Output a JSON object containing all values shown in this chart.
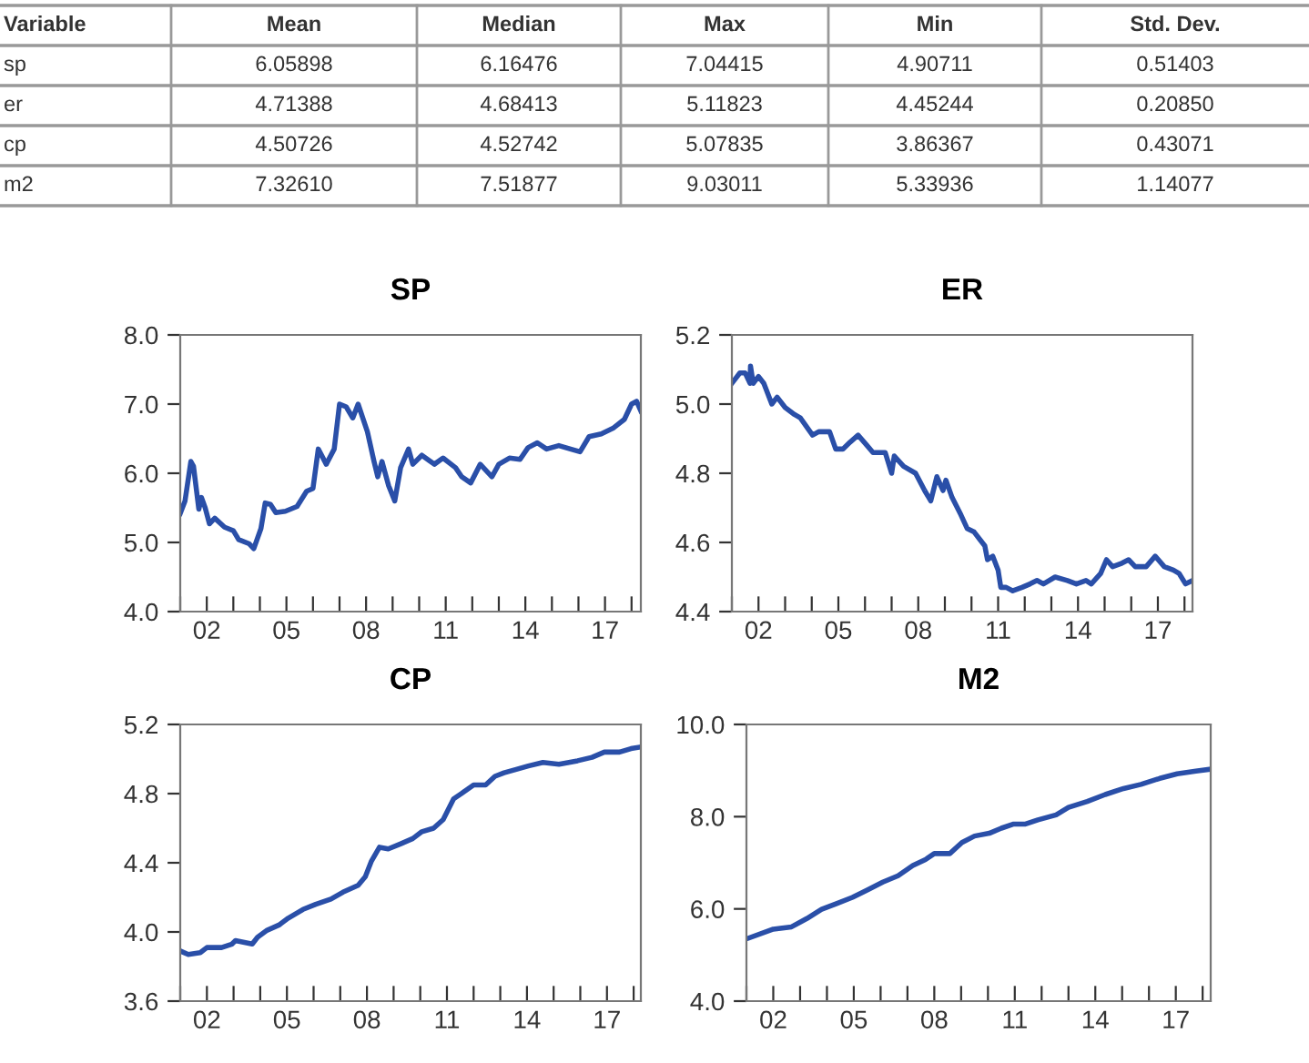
{
  "chart_data": [
    {
      "type": "other",
      "categories": [
        "Variable",
        "Mean",
        "Median",
        "Max",
        "Min",
        "Std. Dev."
      ],
      "annotations": [
        "sp",
        "6.05898",
        "6.16476",
        "7.04415",
        "4.90711",
        "0.51403",
        "er",
        "4.71388",
        "4.68413",
        "5.11823",
        "4.45244",
        "0.20850",
        "cp",
        "4.50726",
        "4.52742",
        "5.07835",
        "3.86367",
        "0.43071",
        "m2",
        "7.32610",
        "7.51877",
        "9.03011",
        "5.33936",
        "1.14077"
      ]
    },
    {
      "type": "line",
      "title": "SP",
      "color": "#2a4fa8",
      "xlim": [
        2001,
        2018.35
      ],
      "ylim": [
        4,
        8
      ],
      "yticks": [
        {
          "value": 4,
          "label": "4.0"
        },
        {
          "value": 5,
          "label": "5.0"
        },
        {
          "value": 6,
          "label": "6.0"
        },
        {
          "value": 7,
          "label": "7.0"
        },
        {
          "value": 8,
          "label": "8.0"
        }
      ],
      "xticks": [
        {
          "value": 2001,
          "label": null
        },
        {
          "value": 2002,
          "label": "02"
        },
        {
          "value": 2003,
          "label": null
        },
        {
          "value": 2004,
          "label": null
        },
        {
          "value": 2005,
          "label": "05"
        },
        {
          "value": 2006,
          "label": null
        },
        {
          "value": 2007,
          "label": null
        },
        {
          "value": 2008,
          "label": "08"
        },
        {
          "value": 2009,
          "label": null
        },
        {
          "value": 2010,
          "label": null
        },
        {
          "value": 2011,
          "label": "11"
        },
        {
          "value": 2012,
          "label": null
        },
        {
          "value": 2013,
          "label": null
        },
        {
          "value": 2014,
          "label": "14"
        },
        {
          "value": 2015,
          "label": null
        },
        {
          "value": 2016,
          "label": null
        },
        {
          "value": 2017,
          "label": "17"
        },
        {
          "value": 2018,
          "label": null
        }
      ],
      "x": [
        2001.0,
        2001.18,
        2001.4,
        2001.5,
        2001.7,
        2001.8,
        2001.94,
        2002.1,
        2002.3,
        2002.67,
        2003.0,
        2003.2,
        2003.6,
        2003.77,
        2004.04,
        2004.2,
        2004.4,
        2004.6,
        2004.96,
        2005.4,
        2005.76,
        2006.0,
        2006.2,
        2006.5,
        2006.8,
        2007.0,
        2007.25,
        2007.5,
        2007.7,
        2008.05,
        2008.3,
        2008.44,
        2008.6,
        2008.85,
        2009.08,
        2009.3,
        2009.6,
        2009.76,
        2010.1,
        2010.57,
        2010.9,
        2011.37,
        2011.6,
        2011.94,
        2012.3,
        2012.74,
        2013.0,
        2013.4,
        2013.8,
        2014.1,
        2014.45,
        2014.8,
        2015.26,
        2015.7,
        2016.06,
        2016.4,
        2016.86,
        2017.3,
        2017.73,
        2018.0,
        2018.19,
        2018.35
      ],
      "values": [
        5.42,
        5.6,
        6.17,
        6.1,
        5.48,
        5.65,
        5.5,
        5.27,
        5.35,
        5.22,
        5.17,
        5.04,
        4.98,
        4.91,
        5.2,
        5.57,
        5.55,
        5.43,
        5.45,
        5.52,
        5.74,
        5.78,
        6.35,
        6.13,
        6.35,
        7.0,
        6.96,
        6.8,
        7.0,
        6.6,
        6.17,
        5.95,
        6.17,
        5.82,
        5.6,
        6.08,
        6.35,
        6.13,
        6.26,
        6.13,
        6.22,
        6.08,
        5.95,
        5.86,
        6.13,
        5.95,
        6.13,
        6.22,
        6.2,
        6.37,
        6.44,
        6.35,
        6.4,
        6.35,
        6.31,
        6.53,
        6.57,
        6.65,
        6.78,
        7.0,
        7.04,
        6.9
      ]
    },
    {
      "type": "line",
      "title": "ER",
      "color": "#2a4fa8",
      "xlim": [
        2001,
        2018.3
      ],
      "ylim": [
        4.4,
        5.2
      ],
      "yticks": [
        {
          "value": 4.4,
          "label": "4.4"
        },
        {
          "value": 4.6,
          "label": "4.6"
        },
        {
          "value": 4.8,
          "label": "4.8"
        },
        {
          "value": 5.0,
          "label": "5.0"
        },
        {
          "value": 5.2,
          "label": "5.2"
        }
      ],
      "xticks": [
        {
          "value": 2001,
          "label": null
        },
        {
          "value": 2002,
          "label": "02"
        },
        {
          "value": 2003,
          "label": null
        },
        {
          "value": 2004,
          "label": null
        },
        {
          "value": 2005,
          "label": "05"
        },
        {
          "value": 2006,
          "label": null
        },
        {
          "value": 2007,
          "label": null
        },
        {
          "value": 2008,
          "label": "08"
        },
        {
          "value": 2009,
          "label": null
        },
        {
          "value": 2010,
          "label": null
        },
        {
          "value": 2011,
          "label": "11"
        },
        {
          "value": 2012,
          "label": null
        },
        {
          "value": 2013,
          "label": null
        },
        {
          "value": 2014,
          "label": "14"
        },
        {
          "value": 2015,
          "label": null
        },
        {
          "value": 2016,
          "label": null
        },
        {
          "value": 2017,
          "label": "17"
        },
        {
          "value": 2018,
          "label": null
        }
      ],
      "x": [
        2001.0,
        2001.3,
        2001.5,
        2001.68,
        2001.7,
        2001.8,
        2002.0,
        2002.2,
        2002.5,
        2002.7,
        2003.0,
        2003.35,
        2003.57,
        2004.03,
        2004.26,
        2004.67,
        2004.9,
        2005.17,
        2005.44,
        2005.74,
        2006.08,
        2006.3,
        2006.76,
        2007.0,
        2007.1,
        2007.45,
        2007.9,
        2008.24,
        2008.47,
        2008.7,
        2008.93,
        2009.04,
        2009.27,
        2009.6,
        2009.84,
        2010.1,
        2010.3,
        2010.5,
        2010.6,
        2010.8,
        2011.0,
        2011.1,
        2011.3,
        2011.55,
        2011.9,
        2012.2,
        2012.46,
        2012.7,
        2013.14,
        2013.6,
        2013.94,
        2014.3,
        2014.5,
        2014.85,
        2015.07,
        2015.3,
        2015.65,
        2015.9,
        2016.15,
        2016.56,
        2016.9,
        2017.24,
        2017.58,
        2017.8,
        2018.04,
        2018.3
      ],
      "values": [
        5.06,
        5.09,
        5.09,
        5.06,
        5.11,
        5.06,
        5.08,
        5.06,
        5.0,
        5.02,
        4.99,
        4.97,
        4.96,
        4.91,
        4.92,
        4.92,
        4.87,
        4.87,
        4.89,
        4.91,
        4.88,
        4.86,
        4.86,
        4.8,
        4.85,
        4.82,
        4.8,
        4.75,
        4.72,
        4.79,
        4.75,
        4.78,
        4.73,
        4.68,
        4.64,
        4.63,
        4.61,
        4.59,
        4.55,
        4.56,
        4.52,
        4.47,
        4.47,
        4.46,
        4.47,
        4.48,
        4.49,
        4.48,
        4.5,
        4.49,
        4.48,
        4.49,
        4.48,
        4.51,
        4.55,
        4.53,
        4.54,
        4.55,
        4.53,
        4.53,
        4.56,
        4.53,
        4.52,
        4.51,
        4.48,
        4.49
      ]
    },
    {
      "type": "line",
      "title": "CP",
      "color": "#2a4fa8",
      "xlim": [
        2001,
        2018.27
      ],
      "ylim": [
        3.6,
        5.2
      ],
      "yticks": [
        {
          "value": 3.6,
          "label": "3.6"
        },
        {
          "value": 4.0,
          "label": "4.0"
        },
        {
          "value": 4.4,
          "label": "4.4"
        },
        {
          "value": 4.8,
          "label": "4.8"
        },
        {
          "value": 5.2,
          "label": "5.2"
        }
      ],
      "xticks": [
        {
          "value": 2001,
          "label": null
        },
        {
          "value": 2002,
          "label": "02"
        },
        {
          "value": 2003,
          "label": null
        },
        {
          "value": 2004,
          "label": null
        },
        {
          "value": 2005,
          "label": "05"
        },
        {
          "value": 2006,
          "label": null
        },
        {
          "value": 2007,
          "label": null
        },
        {
          "value": 2008,
          "label": "08"
        },
        {
          "value": 2009,
          "label": null
        },
        {
          "value": 2010,
          "label": null
        },
        {
          "value": 2011,
          "label": "11"
        },
        {
          "value": 2012,
          "label": null
        },
        {
          "value": 2013,
          "label": null
        },
        {
          "value": 2014,
          "label": "14"
        },
        {
          "value": 2015,
          "label": null
        },
        {
          "value": 2016,
          "label": null
        },
        {
          "value": 2017,
          "label": "17"
        },
        {
          "value": 2018,
          "label": null
        }
      ],
      "x": [
        2001.0,
        2001.3,
        2001.75,
        2002.0,
        2002.55,
        2002.94,
        2003.07,
        2003.7,
        2003.9,
        2004.26,
        2004.7,
        2005.05,
        2005.6,
        2006.08,
        2006.65,
        2007.1,
        2007.67,
        2007.94,
        2008.17,
        2008.47,
        2008.8,
        2009.27,
        2009.72,
        2010.06,
        2010.5,
        2010.86,
        2011.25,
        2011.54,
        2012.0,
        2012.45,
        2012.8,
        2013.14,
        2013.6,
        2014.05,
        2014.6,
        2015.2,
        2015.9,
        2016.44,
        2016.9,
        2017.47,
        2017.9,
        2018.27
      ],
      "values": [
        3.89,
        3.87,
        3.88,
        3.91,
        3.91,
        3.93,
        3.95,
        3.93,
        3.97,
        4.01,
        4.04,
        4.08,
        4.13,
        4.16,
        4.19,
        4.23,
        4.27,
        4.32,
        4.41,
        4.49,
        4.48,
        4.51,
        4.54,
        4.58,
        4.6,
        4.65,
        4.77,
        4.8,
        4.85,
        4.85,
        4.9,
        4.92,
        4.94,
        4.96,
        4.98,
        4.97,
        4.99,
        5.01,
        5.04,
        5.04,
        5.06,
        5.07
      ]
    },
    {
      "type": "line",
      "title": "M2",
      "color": "#2a4fa8",
      "xlim": [
        2001,
        2018.3
      ],
      "ylim": [
        4,
        10
      ],
      "yticks": [
        {
          "value": 4,
          "label": "4.0"
        },
        {
          "value": 6,
          "label": "6.0"
        },
        {
          "value": 8,
          "label": "8.0"
        },
        {
          "value": 10,
          "label": "10.0"
        }
      ],
      "xticks": [
        {
          "value": 2001,
          "label": null
        },
        {
          "value": 2002,
          "label": "02"
        },
        {
          "value": 2003,
          "label": null
        },
        {
          "value": 2004,
          "label": null
        },
        {
          "value": 2005,
          "label": "05"
        },
        {
          "value": 2006,
          "label": null
        },
        {
          "value": 2007,
          "label": null
        },
        {
          "value": 2008,
          "label": "08"
        },
        {
          "value": 2009,
          "label": null
        },
        {
          "value": 2010,
          "label": null
        },
        {
          "value": 2011,
          "label": "11"
        },
        {
          "value": 2012,
          "label": null
        },
        {
          "value": 2013,
          "label": null
        },
        {
          "value": 2014,
          "label": "14"
        },
        {
          "value": 2015,
          "label": null
        },
        {
          "value": 2016,
          "label": null
        },
        {
          "value": 2017,
          "label": "17"
        },
        {
          "value": 2018,
          "label": null
        }
      ],
      "x": [
        2001.0,
        2002.0,
        2002.68,
        2003.25,
        2003.8,
        2004.38,
        2004.95,
        2005.5,
        2006.08,
        2006.65,
        2007.2,
        2007.67,
        2008.0,
        2008.58,
        2009.03,
        2009.5,
        2010.05,
        2010.5,
        2010.96,
        2011.4,
        2011.86,
        2012.54,
        2013.0,
        2013.7,
        2014.37,
        2015.05,
        2015.7,
        2016.4,
        2017.05,
        2017.75,
        2018.3
      ],
      "values": [
        5.35,
        5.56,
        5.61,
        5.79,
        5.99,
        6.12,
        6.25,
        6.41,
        6.58,
        6.72,
        6.94,
        7.07,
        7.2,
        7.2,
        7.44,
        7.58,
        7.64,
        7.75,
        7.84,
        7.84,
        7.93,
        8.04,
        8.2,
        8.33,
        8.48,
        8.61,
        8.7,
        8.83,
        8.93,
        8.99,
        9.03
      ]
    }
  ]
}
